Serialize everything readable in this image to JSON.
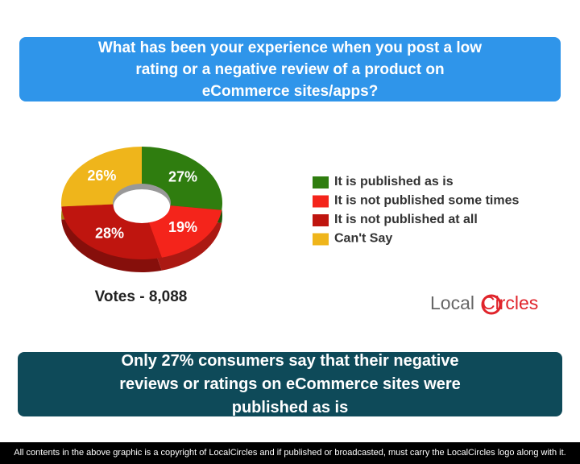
{
  "chart_data": {
    "type": "pie",
    "title": "What has been your experience when you post a low rating or a negative review of a product on eCommerce sites/apps?",
    "categories": [
      "It is published as is",
      "It is not published some times",
      "It is not published at all",
      "Can't Say"
    ],
    "values": [
      27,
      19,
      28,
      26
    ],
    "value_labels": [
      "27%",
      "19%",
      "28%",
      "26%"
    ],
    "colors": [
      "#2f7d0f",
      "#f4241b",
      "#bf150f",
      "#efb51b"
    ],
    "votes": "Votes - 8,088"
  },
  "conclusion": "Only 27% consumers say that their negative reviews or ratings on eCommerce sites were published as is",
  "logo": {
    "first": "Local",
    "second": "Circles"
  },
  "footer": "All contents in the above graphic is a copyright of LocalCircles and if published or broadcasted, must carry the LocalCircles logo along with it."
}
